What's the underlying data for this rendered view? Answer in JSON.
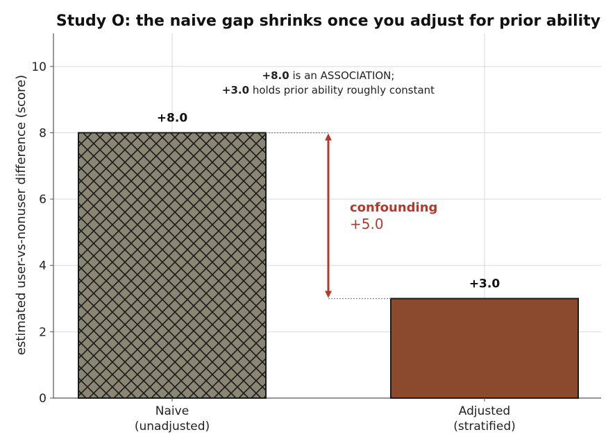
{
  "chart_data": {
    "type": "bar",
    "title": "Study O: the naive gap shrinks once you adjust for prior ability",
    "xlabel": "",
    "ylabel": "estimated user-vs-nonuser difference (score)",
    "ylim": [
      0,
      11
    ],
    "yticks": [
      "0",
      "2",
      "4",
      "6",
      "8",
      "10"
    ],
    "grid": true,
    "categories": [
      {
        "line1": "Naive",
        "line2": "(unadjusted)"
      },
      {
        "line1": "Adjusted",
        "line2": "(stratified)"
      }
    ],
    "values": [
      8.0,
      3.0
    ],
    "value_labels": [
      "+8.0",
      "+3.0"
    ],
    "bar_styles": [
      "crosshatch",
      "solid"
    ],
    "colors": {
      "naive_fill": "#8b8574",
      "adjusted_fill": "#8b4a2e",
      "hatch": "#1a1a1a",
      "arrow": "#b03a2e",
      "grid": "#d9d9d9"
    },
    "annotation": {
      "line1_bold": "+8.0",
      "line1_rest": " is an ASSOCIATION;",
      "line2_bold": "+3.0",
      "line2_rest": " holds prior ability roughly constant"
    },
    "confounding": {
      "label": "confounding",
      "value": "+5.0",
      "from": 8.0,
      "to": 3.0
    }
  }
}
